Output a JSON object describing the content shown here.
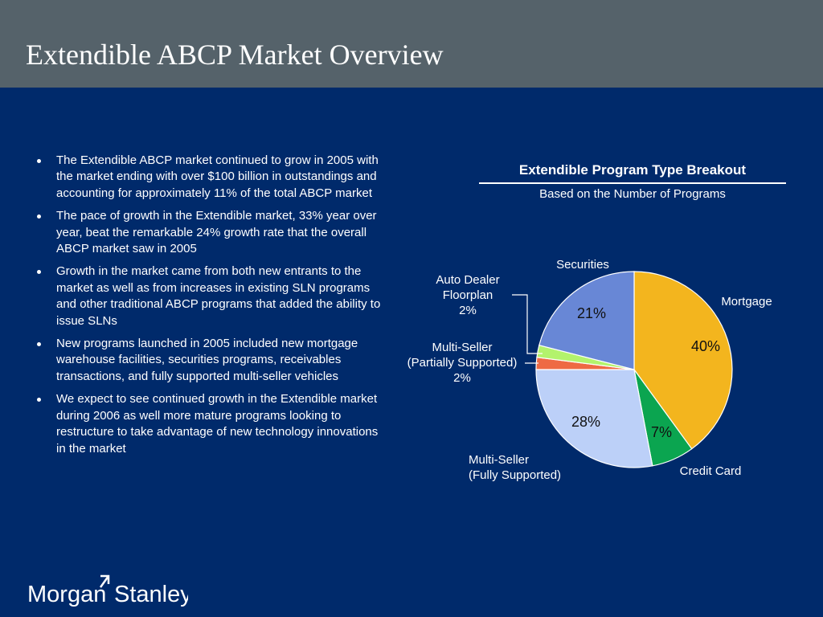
{
  "slide": {
    "title": "Extendible ABCP Market Overview"
  },
  "bullets": [
    "The Extendible ABCP market continued to grow in 2005 with the market ending with over $100 billion in outstandings and accounting for approximately 11% of the total ABCP market",
    "The pace of growth in the Extendible market, 33% year over year, beat the remarkable 24% growth rate that the overall ABCP market saw in 2005",
    "Growth in the market came from both new entrants to the market as well as from increases in existing SLN programs and other traditional ABCP programs that added the ability to issue SLNs",
    "New programs launched in 2005 included new mortgage warehouse facilities, securities programs, receivables transactions, and fully supported multi-seller vehicles",
    "We expect to see continued growth in the Extendible market during 2006 as well more mature programs looking to restructure to take advantage of new technology innovations in the market"
  ],
  "colors": {
    "background": "#002a6b",
    "title_bar": "#55626a"
  },
  "chart_data": {
    "type": "pie",
    "title": "Extendible Program Type Breakout",
    "subtitle": "Based on the Number of Programs",
    "unit": "%",
    "slices": [
      {
        "label_lines": [
          "Mortgage"
        ],
        "value": 40,
        "value_label": "40%",
        "color": "#f3b51e"
      },
      {
        "label_lines": [
          "Credit Card"
        ],
        "value": 7,
        "value_label": "7%",
        "color": "#0ba550"
      },
      {
        "label_lines": [
          "Multi-Seller",
          "(Fully Supported)"
        ],
        "value": 28,
        "value_label": "28%",
        "color": "#bcd0f8"
      },
      {
        "label_lines": [
          "Multi-Seller",
          "(Partially Supported)",
          "2%"
        ],
        "value": 2,
        "value_label": "",
        "color": "#ee6a44"
      },
      {
        "label_lines": [
          "Auto Dealer",
          "Floorplan",
          "2%"
        ],
        "value": 2,
        "value_label": "",
        "color": "#b3f36c"
      },
      {
        "label_lines": [
          "Securities"
        ],
        "value": 21,
        "value_label": "21%",
        "color": "#6887d6"
      }
    ]
  },
  "logo": {
    "left": "Morgan",
    "right": "Stanley"
  }
}
